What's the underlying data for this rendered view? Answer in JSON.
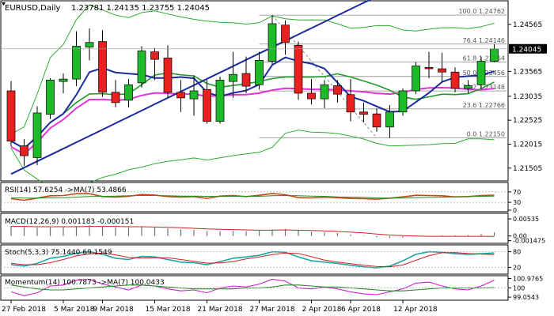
{
  "chart_data": {
    "type": "candlestick",
    "main": {
      "title": "EURUSD,Daily",
      "ohlc_text": "1.23781 1.24135 1.23755 1.24045",
      "ylim": [
        1.2125,
        1.2505
      ],
      "y_ticks": [
        "1.24565",
        "1.23565",
        "1.23035",
        "1.22525",
        "1.22015",
        "1.21505"
      ],
      "y_tick_values": [
        1.24565,
        1.23565,
        1.23035,
        1.22525,
        1.22015,
        1.21505
      ],
      "current_price": "1.24045",
      "current_price_value": 1.24045,
      "x_labels": [
        "27 Feb 2018",
        "5 Mar 2018",
        "9 Mar 2018",
        "15 Mar 2018",
        "21 Mar 2018",
        "27 Mar 2018",
        "2 Apr 2018",
        "6 Apr 2018",
        "12 Apr 2018"
      ],
      "x_label_bar_index": [
        0,
        4,
        7,
        11,
        15,
        19,
        23,
        26,
        30
      ],
      "candles": [
        {
          "o": 1.2315,
          "h": 1.2336,
          "l": 1.2197,
          "c": 1.2208
        },
        {
          "o": 1.2198,
          "h": 1.2212,
          "l": 1.2155,
          "c": 1.2177
        },
        {
          "o": 1.2173,
          "h": 1.2282,
          "l": 1.2157,
          "c": 1.2268
        },
        {
          "o": 1.2265,
          "h": 1.2342,
          "l": 1.2255,
          "c": 1.2338
        },
        {
          "o": 1.2335,
          "h": 1.2352,
          "l": 1.231,
          "c": 1.234
        },
        {
          "o": 1.234,
          "h": 1.2442,
          "l": 1.2325,
          "c": 1.241
        },
        {
          "o": 1.2408,
          "h": 1.2448,
          "l": 1.238,
          "c": 1.2418
        },
        {
          "o": 1.242,
          "h": 1.2444,
          "l": 1.2302,
          "c": 1.2312
        },
        {
          "o": 1.2312,
          "h": 1.2338,
          "l": 1.228,
          "c": 1.229
        },
        {
          "o": 1.2295,
          "h": 1.234,
          "l": 1.228,
          "c": 1.2328
        },
        {
          "o": 1.2332,
          "h": 1.241,
          "l": 1.2322,
          "c": 1.24
        },
        {
          "o": 1.2398,
          "h": 1.2406,
          "l": 1.2338,
          "c": 1.2382
        },
        {
          "o": 1.2385,
          "h": 1.2412,
          "l": 1.23,
          "c": 1.2312
        },
        {
          "o": 1.2312,
          "h": 1.2338,
          "l": 1.227,
          "c": 1.23
        },
        {
          "o": 1.2298,
          "h": 1.2348,
          "l": 1.2262,
          "c": 1.2315
        },
        {
          "o": 1.2318,
          "h": 1.2338,
          "l": 1.2245,
          "c": 1.225
        },
        {
          "o": 1.225,
          "h": 1.2345,
          "l": 1.2245,
          "c": 1.2338
        },
        {
          "o": 1.2335,
          "h": 1.2398,
          "l": 1.23,
          "c": 1.235
        },
        {
          "o": 1.2352,
          "h": 1.2388,
          "l": 1.231,
          "c": 1.2325
        },
        {
          "o": 1.2328,
          "h": 1.2398,
          "l": 1.2318,
          "c": 1.238
        },
        {
          "o": 1.2378,
          "h": 1.2476,
          "l": 1.2372,
          "c": 1.2458
        },
        {
          "o": 1.2455,
          "h": 1.2465,
          "l": 1.2392,
          "c": 1.2418
        },
        {
          "o": 1.2412,
          "h": 1.242,
          "l": 1.2296,
          "c": 1.231
        },
        {
          "o": 1.231,
          "h": 1.234,
          "l": 1.2286,
          "c": 1.2298
        },
        {
          "o": 1.2298,
          "h": 1.2338,
          "l": 1.2278,
          "c": 1.2328
        },
        {
          "o": 1.2326,
          "h": 1.2338,
          "l": 1.229,
          "c": 1.2308
        },
        {
          "o": 1.2307,
          "h": 1.234,
          "l": 1.225,
          "c": 1.227
        },
        {
          "o": 1.227,
          "h": 1.229,
          "l": 1.2248,
          "c": 1.2265
        },
        {
          "o": 1.2266,
          "h": 1.2278,
          "l": 1.2228,
          "c": 1.2238
        },
        {
          "o": 1.2238,
          "h": 1.2285,
          "l": 1.2215,
          "c": 1.227
        },
        {
          "o": 1.227,
          "h": 1.232,
          "l": 1.2262,
          "c": 1.2315
        },
        {
          "o": 1.2315,
          "h": 1.2376,
          "l": 1.2308,
          "c": 1.2368
        },
        {
          "o": 1.2365,
          "h": 1.2398,
          "l": 1.2342,
          "c": 1.2362
        },
        {
          "o": 1.2362,
          "h": 1.2396,
          "l": 1.2335,
          "c": 1.2355
        },
        {
          "o": 1.2355,
          "h": 1.2365,
          "l": 1.2312,
          "c": 1.232
        },
        {
          "o": 1.232,
          "h": 1.2338,
          "l": 1.231,
          "c": 1.2326
        },
        {
          "o": 1.2328,
          "h": 1.2388,
          "l": 1.232,
          "c": 1.2378
        },
        {
          "o": 1.2378,
          "h": 1.2414,
          "l": 1.2376,
          "c": 1.24045
        }
      ],
      "fibonacci": [
        {
          "label": "100.0 1.24762",
          "value": 1.24762
        },
        {
          "label": "76.4 1.24146",
          "value": 1.24146
        },
        {
          "label": "61.8 1.23764",
          "value": 1.23764
        },
        {
          "label": "50.0 1.23456",
          "value": 1.23456
        },
        {
          "label": "38.2 1.23148",
          "value": 1.23148
        },
        {
          "label": "23.6 1.22766",
          "value": 1.22766
        },
        {
          "label": "0.0 1.22150",
          "value": 1.2215
        }
      ],
      "colors": {
        "bull": "#1dbb2a",
        "bear": "#e8201f",
        "ma_fast": "#1b2a9c",
        "ma_mid": "#219a2a",
        "ma_slow": "#e234d6",
        "bollinger": "#2bae2e",
        "baseline": "#1b2a9c",
        "fib": "#8a8a8a",
        "current_price_box": "#000000"
      }
    },
    "rsi": {
      "label": "RSI(14) 57.6254  ->MA(7) 53.4866",
      "y_ticks": [
        "70",
        "30",
        "0"
      ],
      "ylim": [
        0,
        100
      ],
      "rsi_values": [
        44,
        38,
        46,
        55,
        56,
        63,
        63,
        52,
        50,
        53,
        60,
        58,
        52,
        50,
        52,
        45,
        54,
        56,
        52,
        57,
        64,
        59,
        48,
        47,
        50,
        48,
        45,
        44,
        42,
        46,
        51,
        57,
        56,
        55,
        51,
        52,
        56,
        57.6
      ],
      "ma_values": [
        48,
        46,
        46,
        47,
        48,
        50,
        52,
        53,
        54,
        55,
        56,
        56,
        55,
        54,
        54,
        53,
        52,
        53,
        53,
        53,
        55,
        56,
        55,
        54,
        53,
        51,
        50,
        49,
        47,
        46,
        46,
        48,
        49,
        50,
        51,
        52,
        53,
        53.5
      ],
      "colors": {
        "rsi": "#c24a10",
        "ma": "#2a8a2a"
      }
    },
    "macd": {
      "label": "MACD(12,26,9) 0.001183 -0.000151",
      "y_ticks": [
        "0.00535",
        "0.00",
        "-0.001475"
      ],
      "ylim": [
        -0.0018,
        0.0066
      ],
      "histogram": [
        0.0032,
        0.0028,
        0.0026,
        0.0027,
        0.0028,
        0.0031,
        0.0033,
        0.003,
        0.0027,
        0.0026,
        0.0028,
        0.0027,
        0.0024,
        0.0021,
        0.0019,
        0.0015,
        0.0015,
        0.0016,
        0.0015,
        0.0016,
        0.0021,
        0.0022,
        0.0017,
        0.0013,
        0.0011,
        0.0009,
        0.0005,
        0.0002,
        -0.0004,
        -0.0006,
        -0.0005,
        -0.0002,
        0.0,
        0.0002,
        0.0002,
        0.0003,
        0.0006,
        0.00118
      ],
      "signal": [
        0.003,
        0.003,
        0.0029,
        0.0029,
        0.0029,
        0.0029,
        0.003,
        0.003,
        0.003,
        0.0029,
        0.0029,
        0.0028,
        0.0027,
        0.0026,
        0.0024,
        0.0022,
        0.0021,
        0.002,
        0.0019,
        0.0018,
        0.0018,
        0.0019,
        0.0018,
        0.0017,
        0.0016,
        0.0014,
        0.0012,
        0.001,
        0.0006,
        0.0003,
        0.0001,
        0.0,
        -0.0001,
        -0.0001,
        -0.0001,
        -0.0001,
        -0.0001,
        -0.00015
      ],
      "colors": {
        "hist": "#707070",
        "signal": "#d02020"
      }
    },
    "stoch": {
      "label": "Stoch(5,3,3) 75.1440 69.1549",
      "y_ticks": [
        "80",
        "20"
      ],
      "ylim": [
        0,
        100
      ],
      "k": [
        30,
        25,
        35,
        55,
        62,
        74,
        80,
        70,
        55,
        50,
        62,
        60,
        50,
        40,
        38,
        30,
        42,
        55,
        60,
        66,
        80,
        78,
        60,
        45,
        40,
        35,
        28,
        22,
        18,
        25,
        45,
        70,
        80,
        78,
        72,
        70,
        72,
        75.1
      ],
      "d": [
        35,
        30,
        30,
        38,
        50,
        64,
        72,
        75,
        68,
        58,
        56,
        57,
        57,
        50,
        43,
        36,
        37,
        42,
        52,
        60,
        69,
        75,
        73,
        61,
        48,
        40,
        34,
        28,
        23,
        22,
        29,
        47,
        65,
        76,
        77,
        73,
        71,
        69.2
      ],
      "colors": {
        "k": "#1aa7a3",
        "d": "#d02020"
      }
    },
    "momentum": {
      "label": "Momentum(14) 100.7873  ->MA(7) 100.0433",
      "y_ticks": [
        "100.9765",
        "100",
        "99.0543"
      ],
      "ylim": [
        98.9,
        101.1
      ],
      "momentum": [
        99.6,
        99.2,
        99.5,
        100.2,
        100.3,
        100.8,
        100.9,
        100.4,
        100.1,
        99.8,
        100.3,
        100.2,
        99.9,
        99.7,
        99.8,
        99.5,
        100.0,
        100.2,
        100.1,
        100.4,
        100.9,
        100.7,
        100.0,
        99.9,
        100.1,
        99.9,
        99.6,
        99.4,
        99.3,
        99.6,
        99.9,
        100.5,
        100.6,
        100.2,
        99.9,
        99.8,
        100.2,
        100.79
      ],
      "ma": [
        100.3,
        100.1,
        99.9,
        99.8,
        99.8,
        99.9,
        100.0,
        100.1,
        100.2,
        100.3,
        100.3,
        100.2,
        100.1,
        100.0,
        99.9,
        99.9,
        99.9,
        99.9,
        100.0,
        100.0,
        100.1,
        100.3,
        100.3,
        100.2,
        100.1,
        100.1,
        100.0,
        99.9,
        99.8,
        99.7,
        99.7,
        99.8,
        99.9,
        100.0,
        100.0,
        100.0,
        100.0,
        100.04
      ],
      "colors": {
        "mom": "#d020d0",
        "ma": "#2a8a2a"
      }
    }
  }
}
